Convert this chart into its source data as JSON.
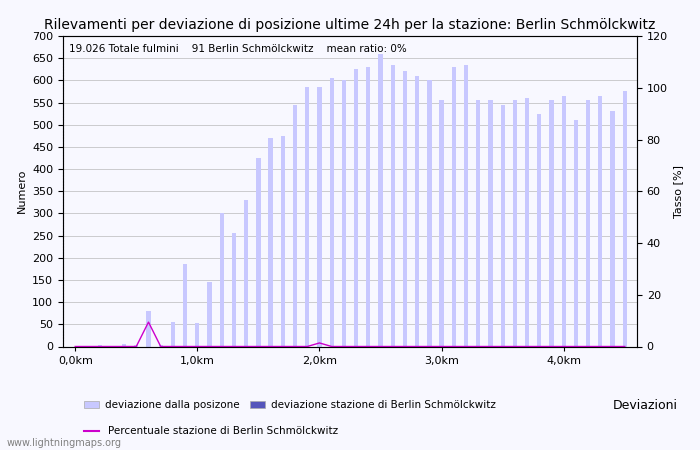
{
  "title": "Rilevamenti per deviazione di posizione ultime 24h per la stazione: Berlin Schmölckwitz",
  "subtitle": "19.026 Totale fulmini    91 Berlin Schmölckwitz    mean ratio: 0%",
  "ylabel_left": "Numero",
  "ylabel_right": "Tasso [%]",
  "xlabel_label": "Deviazioni",
  "watermark": "www.lightningmaps.org",
  "ylim_left": [
    0,
    700
  ],
  "ylim_right": [
    0,
    120
  ],
  "yticks_left": [
    0,
    50,
    100,
    150,
    200,
    250,
    300,
    350,
    400,
    450,
    500,
    550,
    600,
    650,
    700
  ],
  "yticks_right": [
    0,
    20,
    40,
    60,
    80,
    100,
    120
  ],
  "xtick_labels": [
    "0,0km",
    "1,0km",
    "2,0km",
    "3,0km",
    "4,0km"
  ],
  "bar_color_light": "#c8c8ff",
  "bar_color_dark": "#5555bb",
  "line_color": "#cc00cc",
  "bar_width": 0.35,
  "n_bars": 46,
  "bar_values": [
    0,
    2,
    3,
    1,
    5,
    4,
    80,
    3,
    55,
    185,
    52,
    145,
    300,
    255,
    330,
    425,
    470,
    475,
    545,
    585,
    585,
    605,
    600,
    625,
    630,
    660,
    635,
    620,
    610,
    600,
    555,
    630,
    635,
    555,
    555,
    545,
    555,
    560,
    525,
    555,
    565,
    510,
    555,
    565,
    530,
    575
  ],
  "bar_values_dark": [
    0,
    0,
    0,
    0,
    0,
    0,
    0,
    0,
    0,
    0,
    0,
    0,
    0,
    0,
    0,
    0,
    0,
    0,
    0,
    0,
    0,
    0,
    0,
    0,
    0,
    0,
    0,
    0,
    0,
    0,
    0,
    0,
    0,
    0,
    0,
    0,
    0,
    0,
    0,
    0,
    0,
    0,
    0,
    0,
    0,
    0
  ],
  "line_values": [
    0,
    0,
    0,
    0,
    0,
    0,
    55,
    0,
    0,
    0,
    0,
    0,
    0,
    0,
    0,
    0,
    0,
    0,
    0,
    0,
    8,
    0,
    0,
    0,
    0,
    0,
    0,
    0,
    0,
    0,
    0,
    0,
    0,
    0,
    0,
    0,
    0,
    0,
    0,
    0,
    0,
    0,
    0,
    0,
    0,
    0
  ],
  "legend_light_label": "deviazione dalla posizone",
  "legend_dark_label": "deviazione stazione di Berlin Schmölckwitz",
  "legend_line_label": "Percentuale stazione di Berlin Schmölckwitz",
  "background_color": "#f8f8ff",
  "grid_color": "#aaaaaa",
  "title_fontsize": 10,
  "axis_fontsize": 8,
  "tick_fontsize": 8
}
